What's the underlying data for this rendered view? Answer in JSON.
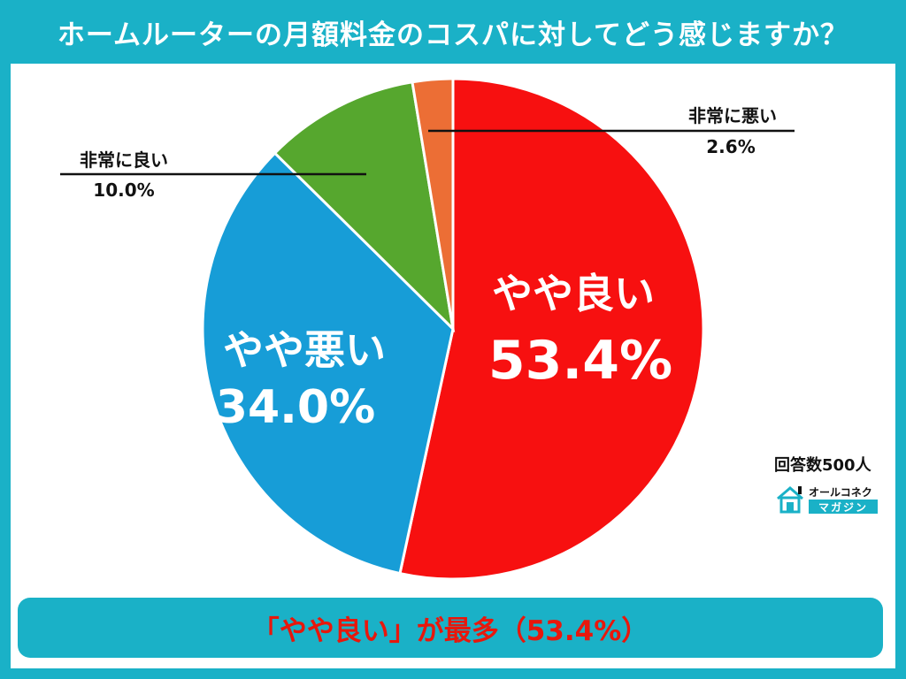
{
  "header": {
    "title": "ホームルーターの月額料金のコスパに対してどう感じますか？"
  },
  "chart_data": {
    "type": "pie",
    "title": "ホームルーターの月額料金のコスパに対してどう感じますか？",
    "slices": [
      {
        "name": "やや良い",
        "value": 53.4,
        "label": "53.4%",
        "color": "#f71010"
      },
      {
        "name": "やや悪い",
        "value": 34.0,
        "label": "34.0%",
        "color": "#179dd7"
      },
      {
        "name": "非常に良い",
        "value": 10.0,
        "label": "10.0%",
        "color": "#56a72e"
      },
      {
        "name": "非常に悪い",
        "value": 2.6,
        "label": "2.6%",
        "color": "#ec6e35"
      }
    ]
  },
  "respondents": "回答数500人",
  "logo": {
    "line1": "オールコネクト",
    "line2": "マガジン"
  },
  "footer": {
    "summary": "「やや良い」が最多（53.4%）"
  }
}
